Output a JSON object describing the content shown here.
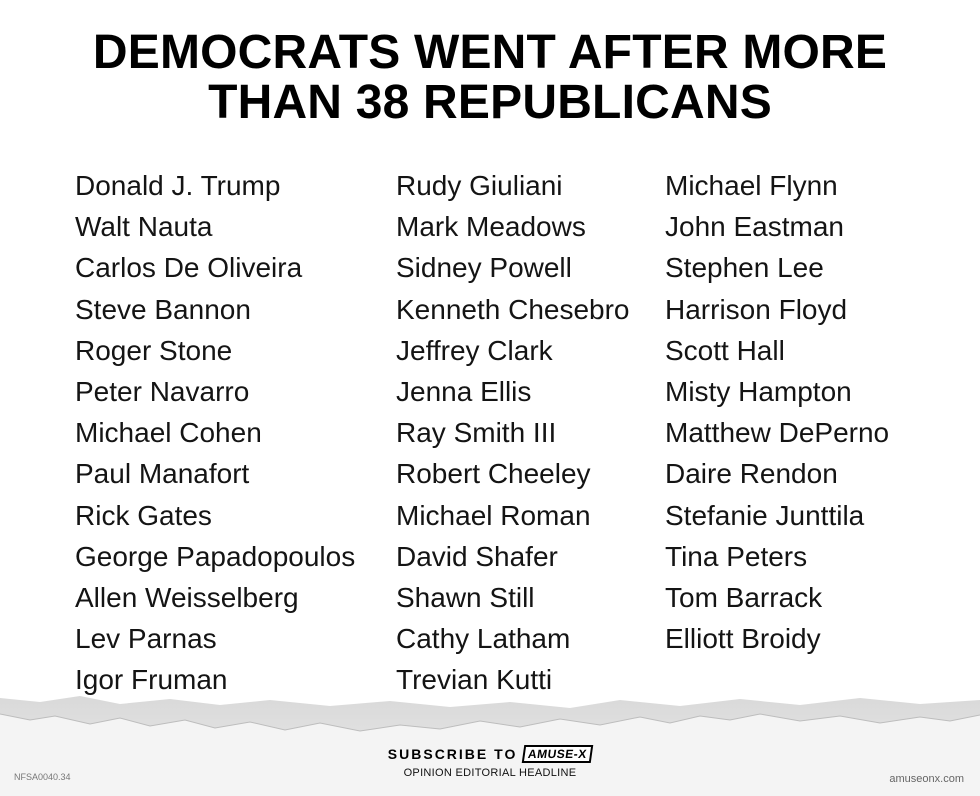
{
  "headline": {
    "line1": "DEMOCRATS WENT AFTER MORE",
    "line2": "THAN 38 REPUBLICANS"
  },
  "columns": [
    [
      "Donald J. Trump",
      "Walt Nauta",
      "Carlos De Oliveira",
      "Steve Bannon",
      "Roger Stone",
      "Peter Navarro",
      "Michael Cohen",
      "Paul Manafort",
      "Rick Gates",
      "George Papadopoulos",
      "Allen Weisselberg",
      "Lev Parnas",
      "Igor Fruman"
    ],
    [
      "Rudy Giuliani",
      "Mark Meadows",
      "Sidney Powell",
      "Kenneth Chesebro",
      "Jeffrey Clark",
      "Jenna Ellis",
      "Ray Smith III",
      "Robert Cheeley",
      "Michael Roman",
      "David Shafer",
      "Shawn Still",
      "Cathy Latham",
      "Trevian Kutti"
    ],
    [
      "Michael Flynn",
      "John Eastman",
      "Stephen Lee",
      "Harrison Floyd",
      "Scott Hall",
      "Misty Hampton",
      "Matthew DePerno",
      "Daire Rendon",
      "Stefanie Junttila",
      "Tina Peters",
      "Tom Barrack",
      "Elliott Broidy"
    ]
  ],
  "footer": {
    "subscribe_text": "SUBSCRIBE TO",
    "brand": "AMUSE-X",
    "tagline": "OPINION EDITORIAL HEADLINE",
    "code": "NFSA0040.34",
    "site": "amuseonx.com"
  },
  "colors": {
    "background": "#ffffff",
    "text": "#111111",
    "torn_band": "#e6e6e6"
  }
}
